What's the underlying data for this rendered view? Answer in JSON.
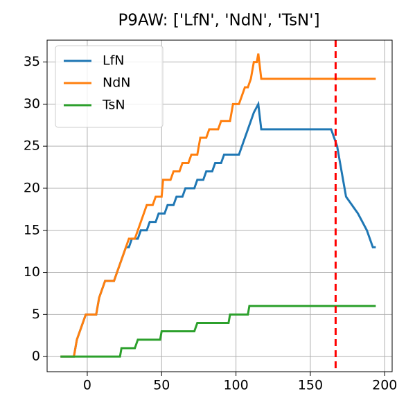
{
  "chart_data": {
    "type": "line",
    "title": "P9AW: ['LfN', 'NdN', 'TsN']",
    "xlim": [
      -27,
      205
    ],
    "ylim": [
      -1.8,
      37.6
    ],
    "xticks": [
      0,
      50,
      100,
      150,
      200
    ],
    "yticks": [
      0,
      5,
      10,
      15,
      20,
      25,
      30,
      35
    ],
    "grid": true,
    "legend": "upper left",
    "series": [
      {
        "name": "LfN",
        "color": "#1f77b4",
        "x": [
          -18,
          -9,
          -7,
          -5,
          -3,
          -1,
          6,
          8,
          10,
          12,
          18,
          20,
          22,
          24,
          26,
          28,
          30,
          34,
          36,
          40,
          42,
          46,
          48,
          52,
          54,
          58,
          60,
          64,
          66,
          72,
          74,
          78,
          80,
          84,
          86,
          90,
          92,
          102,
          104,
          106,
          108,
          110,
          112,
          115,
          117,
          164,
          166,
          168,
          170,
          172,
          174,
          178,
          182,
          185,
          188,
          190,
          192,
          194
        ],
        "values": [
          0,
          0,
          2,
          3,
          4,
          5,
          5,
          7,
          8,
          9,
          9,
          10,
          11,
          12,
          13,
          13,
          14,
          14,
          15,
          15,
          16,
          16,
          17,
          17,
          18,
          18,
          19,
          19,
          20,
          20,
          21,
          21,
          22,
          22,
          23,
          23,
          24,
          24,
          25,
          26,
          27,
          28,
          29,
          30,
          27,
          27,
          26,
          25,
          23,
          21,
          19,
          18,
          17,
          16,
          15,
          14,
          13,
          13
        ]
      },
      {
        "name": "NdN",
        "color": "#ff7f0e",
        "x": [
          -18,
          -9,
          -7,
          -5,
          -3,
          -1,
          6,
          8,
          10,
          12,
          18,
          20,
          22,
          24,
          26,
          28,
          32,
          34,
          36,
          38,
          40,
          44,
          46,
          50,
          51,
          56,
          58,
          62,
          64,
          68,
          70,
          74,
          76,
          80,
          82,
          88,
          90,
          96,
          98,
          102,
          104,
          106,
          108,
          110,
          112,
          114,
          115,
          117,
          194
        ],
        "values": [
          0,
          0,
          2,
          3,
          4,
          5,
          5,
          7,
          8,
          9,
          9,
          10,
          11,
          12,
          13,
          14,
          14,
          15,
          16,
          17,
          18,
          18,
          19,
          19,
          21,
          21,
          22,
          22,
          23,
          23,
          24,
          24,
          26,
          26,
          27,
          27,
          28,
          28,
          30,
          30,
          31,
          32,
          32,
          33,
          35,
          35,
          36,
          33,
          33
        ]
      },
      {
        "name": "TsN",
        "color": "#2ca02c",
        "x": [
          -18,
          22,
          23,
          32,
          34,
          49,
          50,
          72,
          74,
          95,
          96,
          108,
          109,
          194
        ],
        "values": [
          0,
          0,
          1,
          1,
          2,
          2,
          3,
          3,
          4,
          4,
          5,
          5,
          6,
          6
        ]
      }
    ],
    "vlines": [
      {
        "x": 167,
        "color": "#ff0000"
      }
    ]
  }
}
